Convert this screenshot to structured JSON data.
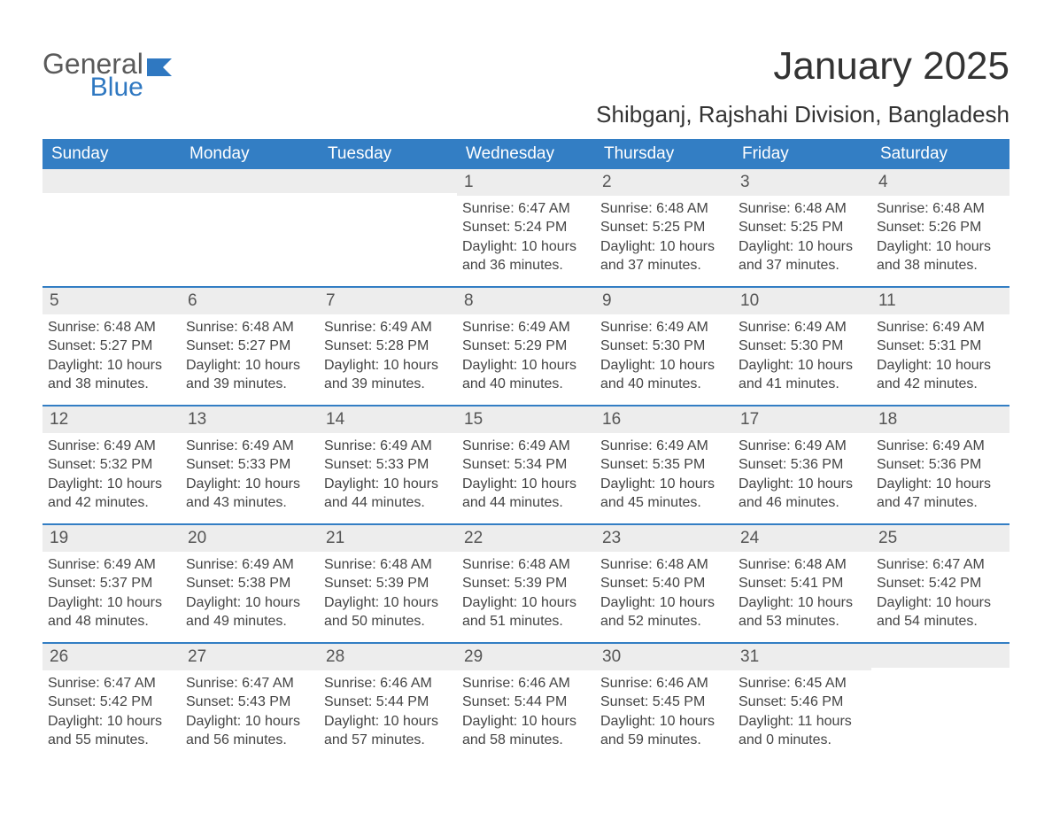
{
  "logo": {
    "text1": "General",
    "text2": "Blue",
    "flag_color": "#2f78c1"
  },
  "title": "January 2025",
  "location": "Shibganj, Rajshahi Division, Bangladesh",
  "colors": {
    "header_bg": "#337ec4",
    "header_text": "#ffffff",
    "daynum_bg": "#ededed",
    "body_text": "#444444",
    "rule": "#337ec4"
  },
  "weekdays": [
    "Sunday",
    "Monday",
    "Tuesday",
    "Wednesday",
    "Thursday",
    "Friday",
    "Saturday"
  ],
  "weeks": [
    [
      null,
      null,
      null,
      {
        "n": "1",
        "sr": "6:47 AM",
        "ss": "5:24 PM",
        "dh": "10",
        "dm": "36"
      },
      {
        "n": "2",
        "sr": "6:48 AM",
        "ss": "5:25 PM",
        "dh": "10",
        "dm": "37"
      },
      {
        "n": "3",
        "sr": "6:48 AM",
        "ss": "5:25 PM",
        "dh": "10",
        "dm": "37"
      },
      {
        "n": "4",
        "sr": "6:48 AM",
        "ss": "5:26 PM",
        "dh": "10",
        "dm": "38"
      }
    ],
    [
      {
        "n": "5",
        "sr": "6:48 AM",
        "ss": "5:27 PM",
        "dh": "10",
        "dm": "38"
      },
      {
        "n": "6",
        "sr": "6:48 AM",
        "ss": "5:27 PM",
        "dh": "10",
        "dm": "39"
      },
      {
        "n": "7",
        "sr": "6:49 AM",
        "ss": "5:28 PM",
        "dh": "10",
        "dm": "39"
      },
      {
        "n": "8",
        "sr": "6:49 AM",
        "ss": "5:29 PM",
        "dh": "10",
        "dm": "40"
      },
      {
        "n": "9",
        "sr": "6:49 AM",
        "ss": "5:30 PM",
        "dh": "10",
        "dm": "40"
      },
      {
        "n": "10",
        "sr": "6:49 AM",
        "ss": "5:30 PM",
        "dh": "10",
        "dm": "41"
      },
      {
        "n": "11",
        "sr": "6:49 AM",
        "ss": "5:31 PM",
        "dh": "10",
        "dm": "42"
      }
    ],
    [
      {
        "n": "12",
        "sr": "6:49 AM",
        "ss": "5:32 PM",
        "dh": "10",
        "dm": "42"
      },
      {
        "n": "13",
        "sr": "6:49 AM",
        "ss": "5:33 PM",
        "dh": "10",
        "dm": "43"
      },
      {
        "n": "14",
        "sr": "6:49 AM",
        "ss": "5:33 PM",
        "dh": "10",
        "dm": "44"
      },
      {
        "n": "15",
        "sr": "6:49 AM",
        "ss": "5:34 PM",
        "dh": "10",
        "dm": "44"
      },
      {
        "n": "16",
        "sr": "6:49 AM",
        "ss": "5:35 PM",
        "dh": "10",
        "dm": "45"
      },
      {
        "n": "17",
        "sr": "6:49 AM",
        "ss": "5:36 PM",
        "dh": "10",
        "dm": "46"
      },
      {
        "n": "18",
        "sr": "6:49 AM",
        "ss": "5:36 PM",
        "dh": "10",
        "dm": "47"
      }
    ],
    [
      {
        "n": "19",
        "sr": "6:49 AM",
        "ss": "5:37 PM",
        "dh": "10",
        "dm": "48"
      },
      {
        "n": "20",
        "sr": "6:49 AM",
        "ss": "5:38 PM",
        "dh": "10",
        "dm": "49"
      },
      {
        "n": "21",
        "sr": "6:48 AM",
        "ss": "5:39 PM",
        "dh": "10",
        "dm": "50"
      },
      {
        "n": "22",
        "sr": "6:48 AM",
        "ss": "5:39 PM",
        "dh": "10",
        "dm": "51"
      },
      {
        "n": "23",
        "sr": "6:48 AM",
        "ss": "5:40 PM",
        "dh": "10",
        "dm": "52"
      },
      {
        "n": "24",
        "sr": "6:48 AM",
        "ss": "5:41 PM",
        "dh": "10",
        "dm": "53"
      },
      {
        "n": "25",
        "sr": "6:47 AM",
        "ss": "5:42 PM",
        "dh": "10",
        "dm": "54"
      }
    ],
    [
      {
        "n": "26",
        "sr": "6:47 AM",
        "ss": "5:42 PM",
        "dh": "10",
        "dm": "55"
      },
      {
        "n": "27",
        "sr": "6:47 AM",
        "ss": "5:43 PM",
        "dh": "10",
        "dm": "56"
      },
      {
        "n": "28",
        "sr": "6:46 AM",
        "ss": "5:44 PM",
        "dh": "10",
        "dm": "57"
      },
      {
        "n": "29",
        "sr": "6:46 AM",
        "ss": "5:44 PM",
        "dh": "10",
        "dm": "58"
      },
      {
        "n": "30",
        "sr": "6:46 AM",
        "ss": "5:45 PM",
        "dh": "10",
        "dm": "59"
      },
      {
        "n": "31",
        "sr": "6:45 AM",
        "ss": "5:46 PM",
        "dh": "11",
        "dm": "0"
      },
      null
    ]
  ],
  "labels": {
    "sunrise_prefix": "Sunrise: ",
    "sunset_prefix": "Sunset: ",
    "daylight_prefix": "Daylight: ",
    "hours_word": " hours",
    "and_word": "and ",
    "minutes_word": " minutes."
  }
}
